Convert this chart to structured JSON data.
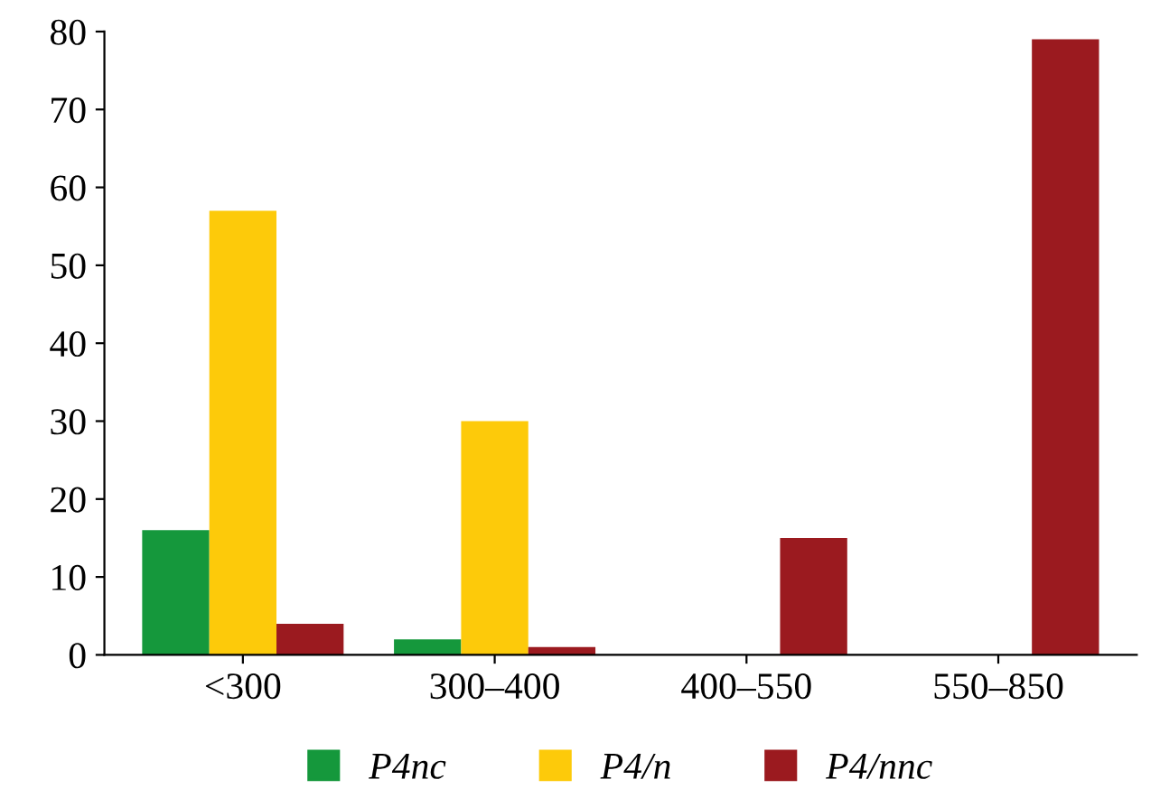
{
  "chart_data": {
    "type": "bar",
    "categories": [
      "<300",
      "300–400",
      "400–550",
      "550–850"
    ],
    "series": [
      {
        "name": "P4nc",
        "color": "#15983c",
        "values": [
          16,
          2,
          0,
          0
        ]
      },
      {
        "name": "P4/n",
        "color": "#fdca0a",
        "values": [
          57,
          30,
          0,
          0
        ]
      },
      {
        "name": "P4/nnc",
        "color": "#9b1a1f",
        "values": [
          4,
          1,
          15,
          79
        ]
      }
    ],
    "ylim": [
      0,
      80
    ],
    "yticks": [
      0,
      10,
      20,
      30,
      40,
      50,
      60,
      70,
      80
    ],
    "grid": false,
    "legend": "bottom"
  }
}
